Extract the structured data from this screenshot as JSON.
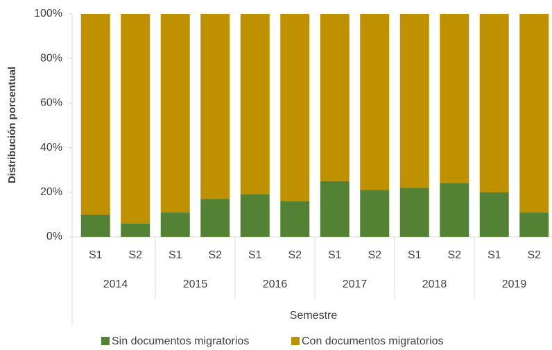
{
  "chart_data": {
    "type": "stacked_bar",
    "categories": [
      "S1",
      "S2",
      "S1",
      "S2",
      "S1",
      "S2",
      "S1",
      "S2",
      "S1",
      "S2",
      "S1",
      "S2"
    ],
    "groups": [
      "2014",
      "2015",
      "2016",
      "2017",
      "2018",
      "2019"
    ],
    "y_label": "Distribución porcentual",
    "x_label": "Semestre",
    "series": [
      {
        "name": "Sin documentos migratorios",
        "color": "#548235",
        "values": [
          10,
          6,
          11,
          17,
          19,
          16,
          25,
          21,
          22,
          24,
          20,
          11
        ]
      },
      {
        "name": "Con documentos migratorios",
        "color": "#bf9000",
        "values": [
          90,
          94,
          89,
          83,
          81,
          84,
          75,
          79,
          78,
          76,
          80,
          89
        ]
      }
    ],
    "ylim": [
      0,
      100
    ],
    "yticks": [
      {
        "value": 0,
        "label": "0%"
      },
      {
        "value": 20,
        "label": "20%"
      },
      {
        "value": 40,
        "label": "40%"
      },
      {
        "value": 60,
        "label": "60%"
      },
      {
        "value": 80,
        "label": "80%"
      },
      {
        "value": 100,
        "label": "100%"
      }
    ]
  }
}
